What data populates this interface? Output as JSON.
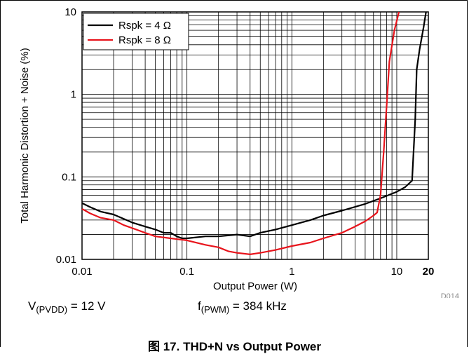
{
  "chart_data": {
    "type": "line",
    "x_scale": "log",
    "y_scale": "log",
    "xlim": [
      0.01,
      20
    ],
    "ylim": [
      0.01,
      10
    ],
    "xlabel": "Output Power (W)",
    "ylabel": "Total Harmonic Distortion + Noise (%)",
    "x_ticks": [
      {
        "value": 0.01,
        "label": "0.01"
      },
      {
        "value": 0.1,
        "label": "0.1"
      },
      {
        "value": 1,
        "label": "1"
      },
      {
        "value": 10,
        "label": "10"
      },
      {
        "value": 20,
        "label": "20"
      }
    ],
    "y_ticks": [
      {
        "value": 0.01,
        "label": "0.01"
      },
      {
        "value": 0.1,
        "label": "0.1"
      },
      {
        "value": 1,
        "label": "1"
      },
      {
        "value": 10,
        "label": "10"
      }
    ],
    "grid": true,
    "legend_position": "top-left",
    "series": [
      {
        "name": "Rspk = 4 Ω",
        "color": "#000000",
        "points": [
          [
            0.01,
            0.048
          ],
          [
            0.012,
            0.043
          ],
          [
            0.015,
            0.038
          ],
          [
            0.02,
            0.035
          ],
          [
            0.025,
            0.031
          ],
          [
            0.03,
            0.028
          ],
          [
            0.04,
            0.025
          ],
          [
            0.05,
            0.023
          ],
          [
            0.06,
            0.021
          ],
          [
            0.07,
            0.021
          ],
          [
            0.08,
            0.019
          ],
          [
            0.09,
            0.018
          ],
          [
            0.1,
            0.018
          ],
          [
            0.15,
            0.019
          ],
          [
            0.2,
            0.019
          ],
          [
            0.3,
            0.02
          ],
          [
            0.4,
            0.019
          ],
          [
            0.5,
            0.021
          ],
          [
            0.7,
            0.023
          ],
          [
            1.0,
            0.026
          ],
          [
            1.5,
            0.03
          ],
          [
            2.0,
            0.034
          ],
          [
            3.0,
            0.039
          ],
          [
            5.0,
            0.047
          ],
          [
            7.0,
            0.055
          ],
          [
            10.0,
            0.066
          ],
          [
            12.0,
            0.075
          ],
          [
            14.0,
            0.09
          ],
          [
            15.0,
            0.5
          ],
          [
            15.5,
            2.0
          ],
          [
            16.5,
            3.5
          ],
          [
            18.0,
            6.5
          ],
          [
            19.0,
            10.0
          ]
        ]
      },
      {
        "name": "Rspk = 8 Ω",
        "color": "#e8141c",
        "points": [
          [
            0.01,
            0.041
          ],
          [
            0.012,
            0.036
          ],
          [
            0.015,
            0.032
          ],
          [
            0.02,
            0.03
          ],
          [
            0.025,
            0.026
          ],
          [
            0.03,
            0.024
          ],
          [
            0.04,
            0.021
          ],
          [
            0.05,
            0.019
          ],
          [
            0.07,
            0.018
          ],
          [
            0.1,
            0.017
          ],
          [
            0.15,
            0.015
          ],
          [
            0.2,
            0.014
          ],
          [
            0.25,
            0.0125
          ],
          [
            0.3,
            0.012
          ],
          [
            0.4,
            0.0115
          ],
          [
            0.5,
            0.012
          ],
          [
            0.7,
            0.013
          ],
          [
            1.0,
            0.0145
          ],
          [
            1.5,
            0.016
          ],
          [
            2.0,
            0.018
          ],
          [
            3.0,
            0.021
          ],
          [
            4.0,
            0.025
          ],
          [
            5.0,
            0.029
          ],
          [
            6.0,
            0.034
          ],
          [
            6.5,
            0.037
          ],
          [
            7.0,
            0.06
          ],
          [
            7.5,
            0.2
          ],
          [
            8.0,
            0.7
          ],
          [
            8.5,
            2.5
          ],
          [
            9.5,
            6.0
          ],
          [
            10.5,
            10.0
          ]
        ]
      }
    ]
  },
  "figure_id": "D014",
  "conditions": {
    "pvdd_main": "V",
    "pvdd_sub": "(PVDD)",
    "pvdd_value": " = 12 V",
    "pwm_main": "f",
    "pwm_sub": "(PWM)",
    "pwm_value": " = 384 kHz"
  },
  "caption": "图 17. THD+N vs Output Power"
}
